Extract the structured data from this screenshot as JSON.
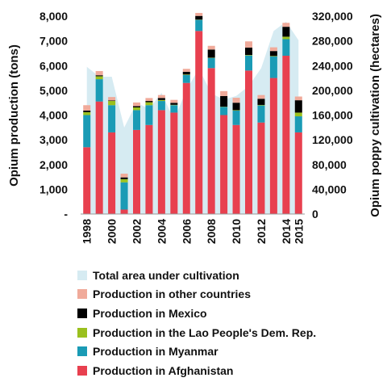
{
  "chart_data": {
    "type": "bar",
    "subtype": "stacked bar with area on secondary axis",
    "years": [
      1998,
      1999,
      2000,
      2001,
      2002,
      2003,
      2004,
      2005,
      2006,
      2007,
      2008,
      2009,
      2010,
      2011,
      2012,
      2013,
      2014,
      2015
    ],
    "x_tick_labels": [
      "1998",
      "2000",
      "2002",
      "2004",
      "2006",
      "2008",
      "2010",
      "2012",
      "2014",
      "2015"
    ],
    "x_tick_years": [
      1998,
      2000,
      2002,
      2004,
      2006,
      2008,
      2010,
      2012,
      2014,
      2015
    ],
    "ylabel_left": "Opium production (tons)",
    "ylabel_right": "Opium poppy cultivation (hectares)",
    "ylim_left": [
      0,
      8000
    ],
    "ylim_right": [
      0,
      320000
    ],
    "left_ticks": [
      "-",
      "1,000",
      "2,000",
      "3,000",
      "4,000",
      "5,000",
      "6,000",
      "7,000",
      "8,000"
    ],
    "right_ticks": [
      "0",
      "40,000",
      "80,000",
      "120,000",
      "160,000",
      "200,000",
      "240,000",
      "280,000",
      "320,000"
    ],
    "grid": false,
    "legend_position": "bottom",
    "series": [
      {
        "name": "Production in Afghanistan",
        "color": "#e8404f",
        "values": [
          2700,
          4550,
          3300,
          180,
          3400,
          3600,
          4200,
          4100,
          5300,
          7400,
          5900,
          4000,
          3600,
          5800,
          3700,
          5500,
          6400,
          3300
        ]
      },
      {
        "name": "Production in Myanmar",
        "color": "#1a9bb5",
        "values": [
          1300,
          900,
          1100,
          1100,
          800,
          800,
          370,
          300,
          320,
          450,
          410,
          330,
          580,
          610,
          690,
          870,
          670,
          650
        ]
      },
      {
        "name": "Production in the Lao People's Dem. Rep.",
        "color": "#9ac01e",
        "values": [
          120,
          120,
          170,
          130,
          110,
          120,
          40,
          15,
          20,
          10,
          10,
          10,
          20,
          20,
          20,
          20,
          100,
          150
        ]
      },
      {
        "name": "Production in Mexico",
        "color": "#000000",
        "values": [
          60,
          40,
          20,
          70,
          50,
          50,
          80,
          80,
          110,
          150,
          330,
          430,
          300,
          300,
          250,
          200,
          400,
          500
        ]
      },
      {
        "name": "Production in other countries",
        "color": "#f0aa9a",
        "values": [
          220,
          170,
          140,
          150,
          150,
          120,
          120,
          120,
          120,
          120,
          150,
          200,
          200,
          250,
          150,
          150,
          160,
          150
        ]
      }
    ],
    "area": {
      "name": "Total area under cultivation",
      "color": "#d6ebf2",
      "values": [
        238000,
        222000,
        222000,
        140000,
        180000,
        170000,
        196000,
        152000,
        201000,
        235000,
        195000,
        185000,
        191000,
        207000,
        236000,
        296000,
        311000,
        281000
      ]
    }
  }
}
